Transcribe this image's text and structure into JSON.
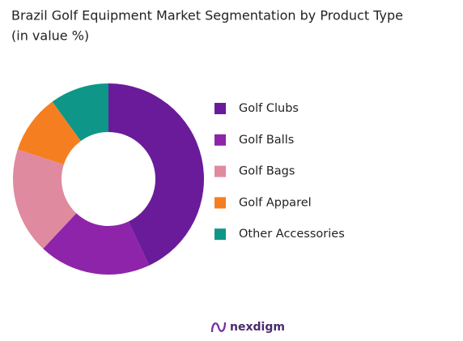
{
  "chart_data": {
    "type": "donut",
    "title": "Brazil Golf Equipment Market Segmentation by Product Type",
    "subtitle": "(in value %)",
    "categories": [
      "Golf Clubs",
      "Golf Balls",
      "Golf Bags",
      "Golf Apparel",
      "Other Accessories"
    ],
    "values": [
      43,
      19,
      18,
      10,
      10
    ],
    "colors": [
      "#6a1b9a",
      "#8e24aa",
      "#e08aa0",
      "#f57f20",
      "#0e9688"
    ],
    "legend": "right",
    "logo": "nexdigm"
  }
}
